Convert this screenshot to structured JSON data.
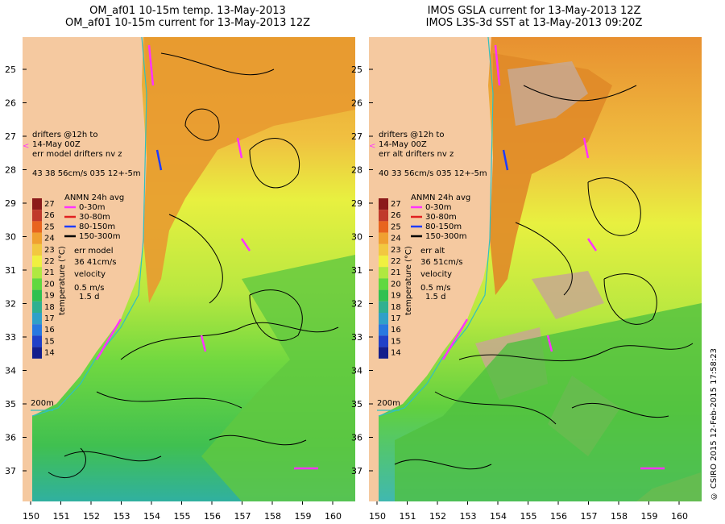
{
  "left": {
    "title1": "OM_af01 10-15m temp. 13-May-2013",
    "title2": "OM_af01 10-15m current for 13-May-2013 12Z",
    "drifters": [
      "drifters @12h to",
      "14-May 00Z",
      "err model drifters nv z",
      "43   38    56cm/s 035 12+-5m"
    ],
    "err_label": [
      "err model",
      "36 41cm/s"
    ]
  },
  "right": {
    "title1": "IMOS GSLA current for 13-May-2013 12Z",
    "title2": "IMOS L3S-3d SST at 13-May-2013 09:20Z",
    "drifters": [
      "drifters @12h to",
      "14-May 00Z",
      "err alt drifters nv z",
      "40 33 56cm/s 035 12+-5m"
    ],
    "err_label": [
      "err alt",
      "36 51cm/s"
    ]
  },
  "legend": {
    "title": "ANMN 24h avg",
    "items": [
      {
        "label": "0-30m",
        "color": "#ff33ff"
      },
      {
        "label": "30-80m",
        "color": "#e02020"
      },
      {
        "label": "80-150m",
        "color": "#1e3cff"
      },
      {
        "label": "150-300m",
        "color": "#000000"
      }
    ],
    "velocity": "velocity",
    "scale_speed": "0.5 m/s",
    "scale_time": "1.5 d",
    "isobath": "200m"
  },
  "colorbar": {
    "label": "temperature (°C)",
    "ticks": [
      "27",
      "26",
      "25",
      "24",
      "23",
      "22",
      "21",
      "20",
      "19",
      "18",
      "17",
      "16",
      "15",
      "14"
    ],
    "colors": [
      "#8b1a1a",
      "#c0392b",
      "#e8641e",
      "#f0a030",
      "#f2c840",
      "#f0f040",
      "#b0e840",
      "#60d840",
      "#30c050",
      "#30b090",
      "#30a0c8",
      "#2878e0",
      "#2040c8",
      "#141e8c"
    ]
  },
  "lat_ticks": [
    "25",
    "26",
    "27",
    "28",
    "29",
    "30",
    "31",
    "32",
    "33",
    "34",
    "35",
    "36",
    "37"
  ],
  "lon_ticks": [
    "150",
    "151",
    "152",
    "153",
    "154",
    "155",
    "156",
    "157",
    "158",
    "159",
    "160"
  ],
  "credit": "© CSIRO 2015   12-Feb-2015 17:58:23"
}
